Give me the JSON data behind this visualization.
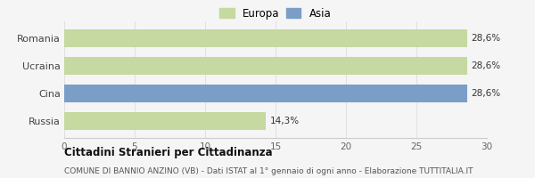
{
  "categories": [
    "Romania",
    "Ucraina",
    "Cina",
    "Russia"
  ],
  "values": [
    28.6,
    28.6,
    28.6,
    14.3
  ],
  "bar_colors": [
    "#c5d9a0",
    "#c5d9a0",
    "#7b9ec7",
    "#c5d9a0"
  ],
  "labels": [
    "28,6%",
    "28,6%",
    "28,6%",
    "14,3%"
  ],
  "xlim": [
    0,
    30
  ],
  "xticks": [
    0,
    5,
    10,
    15,
    20,
    25,
    30
  ],
  "legend": [
    {
      "label": "Europa",
      "color": "#c5d9a0"
    },
    {
      "label": "Asia",
      "color": "#7b9ec7"
    }
  ],
  "title": "Cittadini Stranieri per Cittadinanza",
  "subtitle": "COMUNE DI BANNIO ANZINO (VB) - Dati ISTAT al 1° gennaio di ogni anno - Elaborazione TUTTITALIA.IT",
  "background_color": "#f5f5f5",
  "bar_height": 0.65
}
